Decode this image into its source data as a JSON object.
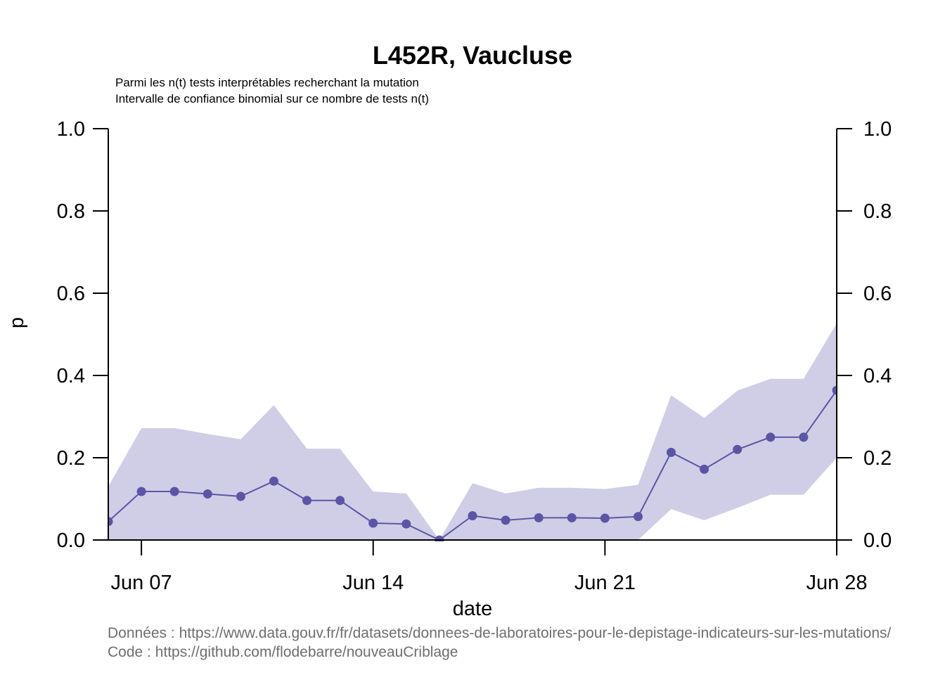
{
  "chart_data": {
    "type": "line",
    "title": "L452R, Vaucluse",
    "subtitle_lines": [
      "Parmi les n(t) tests interprétables recherchant la mutation",
      "Intervalle de confiance binomial sur ce nombre de tests n(t)"
    ],
    "xlabel": "date",
    "ylabel": "p",
    "ylim": [
      0,
      1
    ],
    "y_ticks": [
      "0.0",
      "0.2",
      "0.4",
      "0.6",
      "0.8",
      "1.0"
    ],
    "x_ticks": [
      {
        "date": "2021-06-07",
        "label": "Jun 07"
      },
      {
        "date": "2021-06-14",
        "label": "Jun 14"
      },
      {
        "date": "2021-06-21",
        "label": "Jun 21"
      },
      {
        "date": "2021-06-28",
        "label": "Jun 28"
      }
    ],
    "xlim": [
      "2021-06-06",
      "2021-06-28"
    ],
    "series": [
      {
        "x": [
          "2021-06-06",
          "2021-06-07",
          "2021-06-08",
          "2021-06-09",
          "2021-06-10",
          "2021-06-11",
          "2021-06-12",
          "2021-06-13",
          "2021-06-14",
          "2021-06-15",
          "2021-06-16",
          "2021-06-17",
          "2021-06-18",
          "2021-06-19",
          "2021-06-20",
          "2021-06-21",
          "2021-06-22",
          "2021-06-23",
          "2021-06-24",
          "2021-06-25",
          "2021-06-26",
          "2021-06-27",
          "2021-06-28"
        ],
        "values": [
          0.045,
          0.118,
          0.118,
          0.112,
          0.106,
          0.143,
          0.096,
          0.096,
          0.041,
          0.039,
          0.0,
          0.059,
          0.048,
          0.054,
          0.054,
          0.053,
          0.057,
          0.213,
          0.172,
          0.22,
          0.25,
          0.25,
          0.364
        ],
        "ci_lower": [
          0.0,
          0.0,
          0.0,
          0.0,
          0.0,
          0.0,
          0.0,
          0.0,
          0.0,
          0.0,
          0.0,
          0.0,
          0.0,
          0.0,
          0.0,
          0.0,
          0.0,
          0.075,
          0.048,
          0.078,
          0.11,
          0.11,
          0.2
        ],
        "ci_upper": [
          0.13,
          0.272,
          0.272,
          0.258,
          0.245,
          0.328,
          0.222,
          0.222,
          0.118,
          0.113,
          0.0,
          0.138,
          0.113,
          0.127,
          0.127,
          0.124,
          0.134,
          0.352,
          0.297,
          0.363,
          0.392,
          0.392,
          0.527
        ]
      }
    ],
    "colors": {
      "line": "#5c55a5",
      "band": "#d0cee6"
    },
    "grid": false,
    "right_axis": true
  },
  "footer_lines": [
    "Données : https://www.data.gouv.fr/fr/datasets/donnees-de-laboratoires-pour-le-depistage-indicateurs-sur-les-mutations/",
    "Code : https://github.com/flodebarre/nouveauCriblage"
  ]
}
